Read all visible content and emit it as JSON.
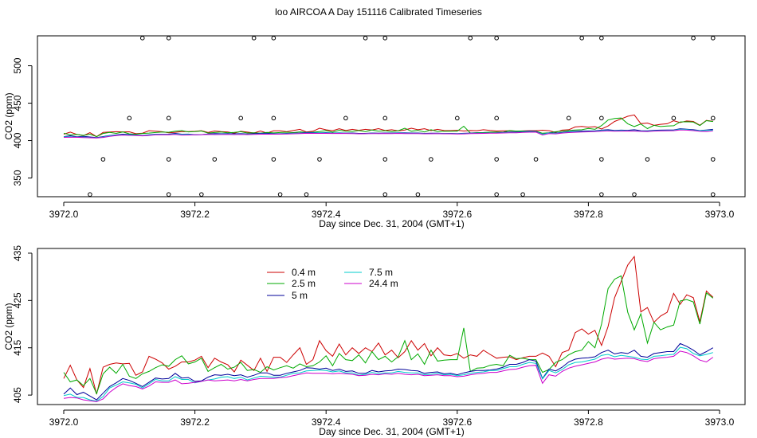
{
  "title": "loo AIRCOA A  Day 151116  Calibrated Timeseries",
  "charts": [
    {
      "type": "line",
      "xlabel": "Day since Dec. 31, 2004 (GMT+1)",
      "ylabel": "CO2 (ppm)",
      "xlim": [
        3972.0,
        3973.0
      ],
      "ylim": [
        325,
        540
      ],
      "xticks": [
        "3972.0",
        "3972.2",
        "3972.4",
        "3972.6",
        "3972.8",
        "3973.0"
      ],
      "yticks": [
        "350",
        "400",
        "450",
        "500"
      ],
      "grid": false,
      "flag_points": {
        "y537": [
          3972.12,
          3972.16,
          3972.29,
          3972.32,
          3972.46,
          3972.49,
          3972.62,
          3972.66,
          3972.79,
          3972.82,
          3972.96,
          3972.99
        ],
        "y430": [
          3972.1,
          3972.16,
          3972.27,
          3972.32,
          3972.43,
          3972.49,
          3972.6,
          3972.66,
          3972.77,
          3972.82,
          3972.93,
          3972.99
        ],
        "y375": [
          3972.06,
          3972.16,
          3972.23,
          3972.32,
          3972.39,
          3972.49,
          3972.56,
          3972.66,
          3972.72,
          3972.82,
          3972.89,
          3972.99
        ],
        "y328": [
          3972.04,
          3972.16,
          3972.21,
          3972.33,
          3972.37,
          3972.49,
          3972.54,
          3972.66,
          3972.7,
          3972.82,
          3972.87,
          3972.99
        ]
      }
    },
    {
      "type": "line",
      "xlabel": "Day since Dec. 31, 2004 (GMT+1)",
      "ylabel": "CO2 (ppm)",
      "xlim": [
        3972.0,
        3973.0
      ],
      "ylim": [
        403,
        436
      ],
      "xticks": [
        "3972.0",
        "3972.2",
        "3972.4",
        "3972.6",
        "3972.8",
        "3973.0"
      ],
      "yticks": [
        "405",
        "415",
        "425",
        "435"
      ],
      "grid": false,
      "legend_position": "top-left"
    }
  ],
  "series_style": [
    {
      "name": "0.4 m",
      "color": "#cc0000"
    },
    {
      "name": "2.5 m",
      "color": "#00aa00"
    },
    {
      "name": "5 m",
      "color": "#000099"
    },
    {
      "name": "7.5 m",
      "color": "#00cccc"
    },
    {
      "name": "24.4 m",
      "color": "#cc00cc"
    }
  ],
  "chart_data": {
    "type": "line",
    "x_start": 3972.0,
    "x_step": 0.01,
    "series": [
      {
        "name": "0.4 m",
        "values": [
          408.5,
          411.3,
          408.2,
          406.6,
          410.6,
          405.2,
          410.9,
          411.5,
          411.8,
          411.6,
          411.7,
          409.2,
          409.9,
          413.2,
          412.6,
          411.8,
          410.5,
          411.1,
          412.0,
          412.0,
          412.4,
          413.2,
          410.8,
          412.8,
          412.0,
          411.4,
          409.9,
          412.4,
          411.3,
          410.2,
          412.8,
          410.0,
          413.0,
          413.0,
          411.9,
          413.5,
          415.0,
          411.5,
          412.5,
          416.5,
          414.4,
          413.2,
          415.8,
          413.5,
          415.0,
          413.8,
          415.0,
          414.2,
          416.0,
          413.5,
          414.5,
          412.9,
          414.2,
          416.5,
          414.5,
          415.9,
          413.3,
          415.0,
          413.5,
          413.3,
          413.8,
          412.8,
          413.5,
          413.2,
          414.5,
          413.6,
          412.8,
          413.0,
          413.1,
          412.5,
          412.9,
          413.2,
          413.2,
          413.9,
          413.2,
          411.0,
          414.0,
          414.5,
          418.2,
          419.0,
          417.9,
          418.7,
          415.5,
          419.5,
          425.6,
          429.0,
          432.5,
          434.3,
          422.6,
          423.5,
          420.4,
          421.7,
          422.5,
          426.5,
          424.2,
          426.2,
          425.6,
          420.5,
          427.0,
          425.7
        ]
      },
      {
        "name": "2.5 m",
        "values": [
          409.8,
          407.8,
          408.2,
          407.0,
          408.5,
          405.3,
          409.5,
          410.9,
          409.6,
          411.5,
          409.0,
          408.5,
          409.5,
          410.0,
          410.8,
          411.4,
          411.1,
          412.5,
          413.3,
          411.6,
          412.0,
          412.8,
          410.0,
          410.8,
          411.5,
          410.5,
          410.9,
          411.9,
          410.2,
          410.4,
          409.8,
          411.0,
          410.3,
          410.8,
          411.2,
          410.7,
          411.6,
          411.0,
          411.2,
          412.0,
          413.3,
          411.2,
          413.8,
          412.5,
          412.3,
          413.5,
          411.8,
          414.2,
          412.5,
          413.2,
          412.0,
          413.1,
          416.5,
          412.5,
          413.7,
          411.5,
          414.5,
          412.2,
          412.4,
          412.5,
          412.5,
          419.2,
          410.0,
          410.7,
          410.8,
          411.3,
          411.5,
          411.2,
          413.4,
          412.7,
          412.8,
          412.5,
          412.5,
          409.8,
          410.4,
          411.9,
          412.5,
          413.5,
          414.2,
          414.5,
          416.3,
          415.0,
          420.0,
          427.5,
          429.5,
          430.2,
          422.5,
          418.8,
          422.2,
          416.0,
          420.4,
          418.8,
          419.4,
          419.8,
          424.9,
          425.2,
          424.7,
          420.0,
          426.6,
          425.5
        ]
      },
      {
        "name": "5 m",
        "values": [
          405.2,
          406.5,
          405.1,
          405.6,
          404.8,
          404.0,
          405.4,
          406.8,
          407.6,
          408.5,
          408.1,
          407.5,
          406.8,
          407.7,
          408.6,
          408.4,
          408.5,
          409.6,
          408.6,
          408.7,
          407.9,
          408.0,
          408.8,
          409.3,
          409.2,
          409.4,
          409.1,
          409.3,
          408.8,
          409.2,
          409.7,
          409.7,
          409.2,
          409.2,
          409.6,
          409.9,
          410.2,
          410.8,
          410.7,
          410.5,
          410.7,
          410.2,
          410.5,
          410.0,
          410.1,
          409.6,
          409.6,
          410.2,
          409.9,
          410.1,
          410.2,
          410.5,
          410.4,
          410.2,
          410.1,
          409.6,
          409.8,
          409.9,
          409.5,
          409.6,
          409.3,
          409.7,
          410.0,
          410.2,
          410.2,
          410.3,
          410.5,
          410.9,
          411.5,
          411.5,
          411.9,
          412.5,
          412.2,
          408.5,
          410.5,
          410.1,
          410.9,
          412.0,
          412.6,
          412.8,
          412.9,
          413.1,
          414.0,
          414.5,
          413.7,
          414.0,
          413.8,
          414.5,
          413.2,
          413.0,
          413.8,
          414.0,
          414.2,
          414.2,
          415.9,
          415.3,
          414.5,
          413.5,
          414.2,
          415.0
        ]
      },
      {
        "name": "7.5 m",
        "values": [
          404.9,
          405.2,
          404.5,
          404.5,
          404.0,
          403.7,
          404.7,
          406.5,
          407.1,
          407.8,
          407.6,
          407.3,
          406.5,
          407.4,
          408.3,
          408.0,
          408.0,
          408.9,
          408.3,
          408.3,
          407.6,
          407.9,
          408.2,
          408.4,
          408.8,
          408.9,
          408.5,
          408.8,
          408.2,
          408.6,
          409.0,
          408.9,
          408.8,
          408.8,
          409.2,
          409.6,
          409.7,
          410.1,
          410.2,
          410.3,
          410.2,
          409.9,
          410.1,
          409.7,
          409.7,
          409.2,
          409.4,
          409.8,
          409.5,
          409.7,
          409.7,
          410.0,
          409.8,
          409.7,
          409.7,
          409.3,
          409.4,
          409.6,
          409.3,
          409.4,
          409.1,
          409.3,
          409.6,
          409.8,
          409.9,
          410.2,
          410.2,
          410.6,
          411.0,
          411.0,
          411.5,
          411.9,
          411.7,
          408.4,
          410.2,
          409.7,
          410.4,
          411.4,
          411.9,
          412.0,
          412.3,
          412.6,
          413.4,
          413.6,
          413.1,
          413.4,
          413.2,
          413.0,
          412.6,
          412.5,
          413.2,
          413.3,
          413.5,
          413.6,
          415.1,
          414.8,
          413.8,
          413.3,
          413.6,
          414.0
        ]
      },
      {
        "name": "24.4 m",
        "values": [
          404.3,
          404.5,
          404.4,
          404.0,
          403.8,
          403.6,
          404.2,
          405.6,
          406.6,
          407.4,
          407.0,
          406.8,
          406.3,
          406.9,
          407.8,
          407.7,
          407.7,
          408.2,
          407.4,
          407.5,
          407.7,
          407.9,
          408.2,
          408.0,
          408.1,
          408.2,
          408.0,
          408.3,
          408.0,
          408.3,
          408.5,
          408.5,
          408.5,
          408.7,
          408.8,
          409.1,
          409.4,
          409.7,
          409.6,
          409.6,
          409.6,
          409.5,
          409.6,
          409.5,
          409.4,
          409.1,
          409.2,
          409.4,
          409.3,
          409.5,
          409.4,
          409.6,
          409.4,
          409.3,
          409.4,
          409.1,
          409.2,
          409.3,
          409.1,
          409.1,
          408.9,
          409.0,
          409.3,
          409.5,
          409.6,
          409.8,
          409.8,
          410.1,
          410.4,
          410.5,
          410.9,
          411.2,
          411.3,
          407.5,
          409.3,
          409.0,
          410.0,
          410.7,
          411.1,
          411.4,
          411.7,
          412.0,
          412.6,
          412.9,
          412.6,
          412.7,
          412.8,
          412.7,
          412.3,
          412.1,
          412.7,
          412.9,
          413.0,
          413.2,
          414.3,
          414.0,
          413.3,
          412.4,
          412.0,
          413.0
        ]
      }
    ]
  }
}
